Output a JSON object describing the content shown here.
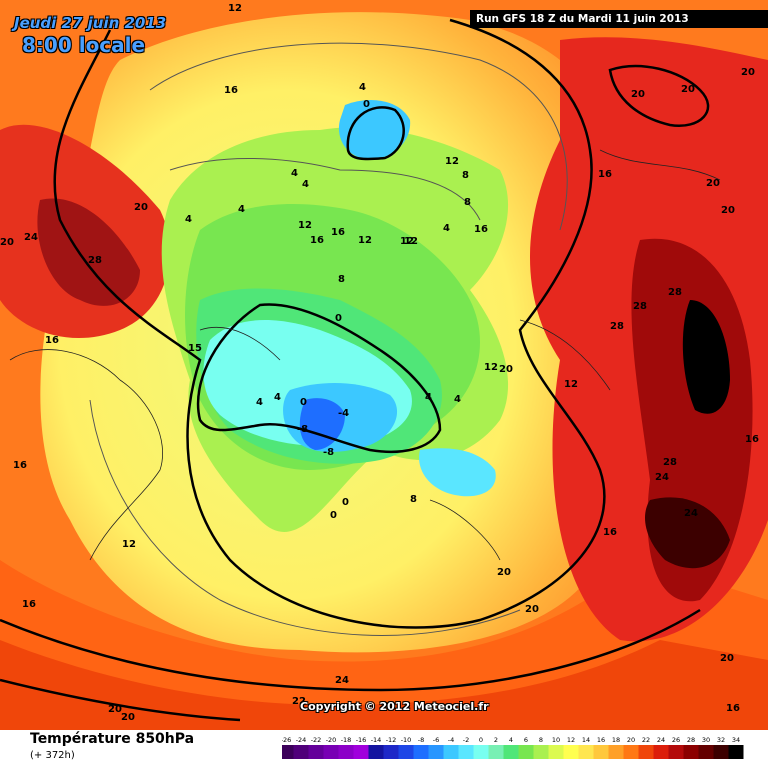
{
  "header": {
    "date": "Jeudi 27 juin 2013",
    "time": "8:00 locale",
    "run": "Run GFS 18 Z du Mardi 11 juin 2013"
  },
  "footer": {
    "parameter": "Température 850hPa",
    "lead_time": "(+ 372h)",
    "copyright": "Copyright © 2012 Meteociel.fr"
  },
  "legend": {
    "values": [
      -26,
      -24,
      -22,
      -20,
      -18,
      -16,
      -14,
      -12,
      -10,
      -8,
      -6,
      -4,
      -2,
      0,
      2,
      4,
      6,
      8,
      10,
      12,
      14,
      16,
      18,
      20,
      22,
      24,
      26,
      28,
      30,
      32,
      34
    ],
    "colors": [
      "#3c005a",
      "#50007a",
      "#64009a",
      "#7800b4",
      "#8c00c8",
      "#a000dc",
      "#1414a0",
      "#1e28c8",
      "#1e46e6",
      "#1e6eff",
      "#2896ff",
      "#3cc8ff",
      "#5ae6ff",
      "#78fff0",
      "#78f0b4",
      "#50e678",
      "#78e650",
      "#aaf050",
      "#dcfa50",
      "#ffff50",
      "#ffe650",
      "#ffc83c",
      "#ffa028",
      "#ff7814",
      "#f0460a",
      "#dc1e0a",
      "#b40a0a",
      "#8c0000",
      "#640000",
      "#3c0000",
      "#000000"
    ],
    "labels": [
      "-26",
      "-24",
      "-22",
      "-20",
      "-18",
      "-16",
      "-14",
      "-12",
      "-10",
      "-8",
      "-6",
      "-4",
      "-2",
      "0",
      "2",
      "4",
      "6",
      "8",
      "10",
      "12",
      "14",
      "16",
      "18",
      "20",
      "22",
      "24",
      "26",
      "28",
      "30",
      "32",
      "34"
    ]
  },
  "map_labels": [
    "12",
    "16",
    "20",
    "24",
    "28",
    "20",
    "16",
    "12",
    "16",
    "15",
    "4",
    "0",
    "4",
    "4",
    "12",
    "16",
    "16",
    "12",
    "12",
    "4",
    "8",
    "16",
    "12",
    "8",
    "0",
    "4",
    "4",
    "0",
    "-4",
    "-8",
    "-8",
    "0",
    "0",
    "4",
    "4",
    "8",
    "12",
    "20",
    "12",
    "16",
    "8",
    "20",
    "28",
    "28",
    "28",
    "28",
    "24",
    "24",
    "20",
    "20",
    "16",
    "16",
    "20",
    "20",
    "20",
    "20",
    "20",
    "16",
    "24",
    "22",
    "20",
    "12",
    "16",
    "20",
    "4",
    "4"
  ]
}
